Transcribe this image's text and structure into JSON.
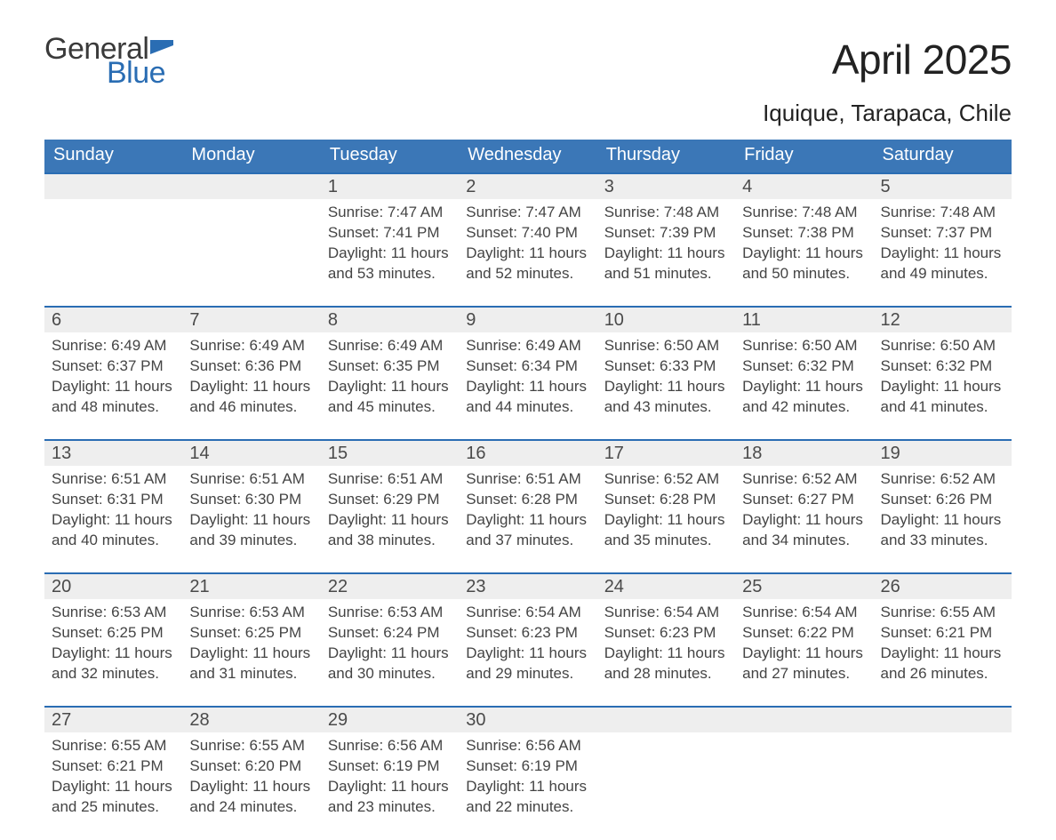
{
  "brand": {
    "general": "General",
    "blue": "Blue"
  },
  "title": "April 2025",
  "location": "Iquique, Tarapaca, Chile",
  "colors": {
    "header_blue": "#3b77b7",
    "accent_blue": "#2a6db3",
    "daynum_bg": "#eeeeee",
    "background": "#ffffff",
    "text": "#333333"
  },
  "weekdays": [
    "Sunday",
    "Monday",
    "Tuesday",
    "Wednesday",
    "Thursday",
    "Friday",
    "Saturday"
  ],
  "weeks": [
    [
      null,
      null,
      {
        "n": "1",
        "sr": "Sunrise: 7:47 AM",
        "ss": "Sunset: 7:41 PM",
        "dl": "Daylight: 11 hours and 53 minutes."
      },
      {
        "n": "2",
        "sr": "Sunrise: 7:47 AM",
        "ss": "Sunset: 7:40 PM",
        "dl": "Daylight: 11 hours and 52 minutes."
      },
      {
        "n": "3",
        "sr": "Sunrise: 7:48 AM",
        "ss": "Sunset: 7:39 PM",
        "dl": "Daylight: 11 hours and 51 minutes."
      },
      {
        "n": "4",
        "sr": "Sunrise: 7:48 AM",
        "ss": "Sunset: 7:38 PM",
        "dl": "Daylight: 11 hours and 50 minutes."
      },
      {
        "n": "5",
        "sr": "Sunrise: 7:48 AM",
        "ss": "Sunset: 7:37 PM",
        "dl": "Daylight: 11 hours and 49 minutes."
      }
    ],
    [
      {
        "n": "6",
        "sr": "Sunrise: 6:49 AM",
        "ss": "Sunset: 6:37 PM",
        "dl": "Daylight: 11 hours and 48 minutes."
      },
      {
        "n": "7",
        "sr": "Sunrise: 6:49 AM",
        "ss": "Sunset: 6:36 PM",
        "dl": "Daylight: 11 hours and 46 minutes."
      },
      {
        "n": "8",
        "sr": "Sunrise: 6:49 AM",
        "ss": "Sunset: 6:35 PM",
        "dl": "Daylight: 11 hours and 45 minutes."
      },
      {
        "n": "9",
        "sr": "Sunrise: 6:49 AM",
        "ss": "Sunset: 6:34 PM",
        "dl": "Daylight: 11 hours and 44 minutes."
      },
      {
        "n": "10",
        "sr": "Sunrise: 6:50 AM",
        "ss": "Sunset: 6:33 PM",
        "dl": "Daylight: 11 hours and 43 minutes."
      },
      {
        "n": "11",
        "sr": "Sunrise: 6:50 AM",
        "ss": "Sunset: 6:32 PM",
        "dl": "Daylight: 11 hours and 42 minutes."
      },
      {
        "n": "12",
        "sr": "Sunrise: 6:50 AM",
        "ss": "Sunset: 6:32 PM",
        "dl": "Daylight: 11 hours and 41 minutes."
      }
    ],
    [
      {
        "n": "13",
        "sr": "Sunrise: 6:51 AM",
        "ss": "Sunset: 6:31 PM",
        "dl": "Daylight: 11 hours and 40 minutes."
      },
      {
        "n": "14",
        "sr": "Sunrise: 6:51 AM",
        "ss": "Sunset: 6:30 PM",
        "dl": "Daylight: 11 hours and 39 minutes."
      },
      {
        "n": "15",
        "sr": "Sunrise: 6:51 AM",
        "ss": "Sunset: 6:29 PM",
        "dl": "Daylight: 11 hours and 38 minutes."
      },
      {
        "n": "16",
        "sr": "Sunrise: 6:51 AM",
        "ss": "Sunset: 6:28 PM",
        "dl": "Daylight: 11 hours and 37 minutes."
      },
      {
        "n": "17",
        "sr": "Sunrise: 6:52 AM",
        "ss": "Sunset: 6:28 PM",
        "dl": "Daylight: 11 hours and 35 minutes."
      },
      {
        "n": "18",
        "sr": "Sunrise: 6:52 AM",
        "ss": "Sunset: 6:27 PM",
        "dl": "Daylight: 11 hours and 34 minutes."
      },
      {
        "n": "19",
        "sr": "Sunrise: 6:52 AM",
        "ss": "Sunset: 6:26 PM",
        "dl": "Daylight: 11 hours and 33 minutes."
      }
    ],
    [
      {
        "n": "20",
        "sr": "Sunrise: 6:53 AM",
        "ss": "Sunset: 6:25 PM",
        "dl": "Daylight: 11 hours and 32 minutes."
      },
      {
        "n": "21",
        "sr": "Sunrise: 6:53 AM",
        "ss": "Sunset: 6:25 PM",
        "dl": "Daylight: 11 hours and 31 minutes."
      },
      {
        "n": "22",
        "sr": "Sunrise: 6:53 AM",
        "ss": "Sunset: 6:24 PM",
        "dl": "Daylight: 11 hours and 30 minutes."
      },
      {
        "n": "23",
        "sr": "Sunrise: 6:54 AM",
        "ss": "Sunset: 6:23 PM",
        "dl": "Daylight: 11 hours and 29 minutes."
      },
      {
        "n": "24",
        "sr": "Sunrise: 6:54 AM",
        "ss": "Sunset: 6:23 PM",
        "dl": "Daylight: 11 hours and 28 minutes."
      },
      {
        "n": "25",
        "sr": "Sunrise: 6:54 AM",
        "ss": "Sunset: 6:22 PM",
        "dl": "Daylight: 11 hours and 27 minutes."
      },
      {
        "n": "26",
        "sr": "Sunrise: 6:55 AM",
        "ss": "Sunset: 6:21 PM",
        "dl": "Daylight: 11 hours and 26 minutes."
      }
    ],
    [
      {
        "n": "27",
        "sr": "Sunrise: 6:55 AM",
        "ss": "Sunset: 6:21 PM",
        "dl": "Daylight: 11 hours and 25 minutes."
      },
      {
        "n": "28",
        "sr": "Sunrise: 6:55 AM",
        "ss": "Sunset: 6:20 PM",
        "dl": "Daylight: 11 hours and 24 minutes."
      },
      {
        "n": "29",
        "sr": "Sunrise: 6:56 AM",
        "ss": "Sunset: 6:19 PM",
        "dl": "Daylight: 11 hours and 23 minutes."
      },
      {
        "n": "30",
        "sr": "Sunrise: 6:56 AM",
        "ss": "Sunset: 6:19 PM",
        "dl": "Daylight: 11 hours and 22 minutes."
      },
      null,
      null,
      null
    ]
  ]
}
